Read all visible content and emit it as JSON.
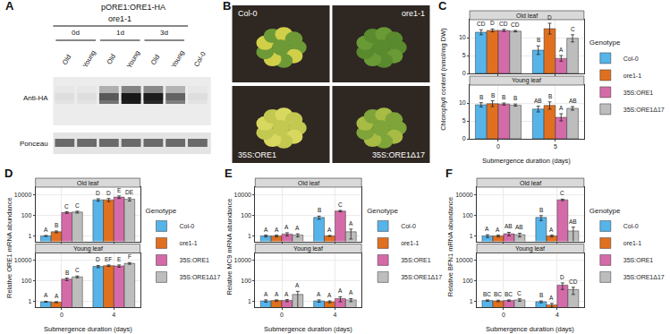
{
  "panels": {
    "A": {
      "label": "A",
      "construct": "pORE1:ORE1-HA",
      "genotype": "ore1-1",
      "timepoints": [
        "0d",
        "1d",
        "3d"
      ],
      "lanes": [
        "Old",
        "Young",
        "Old",
        "Young",
        "Old",
        "Young",
        "Col-0"
      ],
      "rows": [
        "Anti-HA",
        "Ponceau"
      ]
    },
    "B": {
      "label": "B",
      "genotypes": [
        "Col-0",
        "ore1-1",
        "35S:ORE1",
        "35S:ORE1Δ17"
      ]
    }
  },
  "chart_data": [
    {
      "label": "C",
      "type": "bar",
      "y_label": "Chlorophyll content (nmol/mg DW)",
      "x_label": "Submergence duration (days)",
      "categories": [
        "0",
        "5"
      ],
      "legend": "right",
      "legend_title": "Genotype",
      "grid": true,
      "facets": [
        {
          "title": "Old leaf",
          "ylim": [
            0,
            15
          ],
          "yticks": [
            0,
            5,
            10
          ],
          "series": [
            {
              "name": "Col-0",
              "color": "#56B4E9",
              "values": [
                11.5,
                6.5
              ],
              "errors": [
                0.7,
                1.2
              ],
              "letters": [
                "CD",
                "B"
              ]
            },
            {
              "name": "ore1-1",
              "color": "#E07020",
              "values": [
                12,
                12.5
              ],
              "errors": [
                0.4,
                1.5
              ],
              "letters": [
                "D",
                "D"
              ]
            },
            {
              "name": "35S:ORE1",
              "color": "#D46BA8",
              "values": [
                12,
                4.2
              ],
              "errors": [
                0.3,
                0.8
              ],
              "letters": [
                "CD",
                "A"
              ]
            },
            {
              "name": "35S:ORE1Δ17",
              "color": "#BDBDBD",
              "values": [
                11.8,
                9.8
              ],
              "errors": [
                0.2,
                1.0
              ],
              "letters": [
                "CD",
                "C"
              ]
            }
          ]
        },
        {
          "title": "Young leaf",
          "ylim": [
            0,
            15
          ],
          "yticks": [
            0,
            5,
            10
          ],
          "series": [
            {
              "name": "Col-0",
              "color": "#56B4E9",
              "values": [
                9.5,
                8.3
              ],
              "errors": [
                0.6,
                0.8
              ],
              "letters": [
                "B",
                "AB"
              ]
            },
            {
              "name": "ore1-1",
              "color": "#E07020",
              "values": [
                9.8,
                9.3
              ],
              "errors": [
                0.8,
                1.0
              ],
              "letters": [
                "B",
                "B"
              ]
            },
            {
              "name": "35S:ORE1",
              "color": "#D46BA8",
              "values": [
                9.7,
                6.0
              ],
              "errors": [
                0.3,
                1.0
              ],
              "letters": [
                "B",
                "A"
              ]
            },
            {
              "name": "35S:ORE1Δ17",
              "color": "#BDBDBD",
              "values": [
                9.4,
                8.5
              ],
              "errors": [
                0.3,
                0.5
              ],
              "letters": [
                "B",
                "AB"
              ]
            }
          ]
        }
      ]
    },
    {
      "label": "D",
      "type": "bar",
      "y_label": "Relative ORE1 mRNA abundance",
      "x_label": "Submergence duration (days)",
      "categories": [
        "0",
        "4"
      ],
      "log": "y",
      "legend": "right",
      "legend_title": "Genotype",
      "grid": true,
      "facets": [
        {
          "title": "Old leaf",
          "ylim": [
            0.3,
            50000
          ],
          "yticks": [
            1,
            100,
            10000
          ],
          "series": [
            {
              "name": "Col-0",
              "color": "#56B4E9",
              "values": [
                1,
                3000
              ],
              "errors": [
                0.1,
                800
              ],
              "letters": [
                "A",
                "D"
              ]
            },
            {
              "name": "ore1-1",
              "color": "#E07020",
              "values": [
                2.5,
                3000
              ],
              "errors": [
                0.5,
                1000
              ],
              "letters": [
                "B",
                "D"
              ]
            },
            {
              "name": "35S:ORE1",
              "color": "#D46BA8",
              "values": [
                180,
                5500
              ],
              "errors": [
                30,
                1500
              ],
              "letters": [
                "C",
                "E"
              ]
            },
            {
              "name": "35S:ORE1Δ17",
              "color": "#BDBDBD",
              "values": [
                200,
                3500
              ],
              "errors": [
                40,
                1200
              ],
              "letters": [
                "C",
                "DE"
              ]
            }
          ]
        },
        {
          "title": "Young leaf",
          "ylim": [
            0.3,
            50000
          ],
          "yticks": [
            1,
            100,
            10000
          ],
          "series": [
            {
              "name": "Col-0",
              "color": "#56B4E9",
              "values": [
                1,
                2500
              ],
              "errors": [
                0.1,
                600
              ],
              "letters": [
                "A",
                "D"
              ]
            },
            {
              "name": "ore1-1",
              "color": "#E07020",
              "values": [
                0.9,
                3000
              ],
              "errors": [
                0.1,
                500
              ],
              "letters": [
                "A",
                "EF"
              ]
            },
            {
              "name": "35S:ORE1",
              "color": "#D46BA8",
              "values": [
                150,
                2800
              ],
              "errors": [
                40,
                700
              ],
              "letters": [
                "B",
                "E"
              ]
            },
            {
              "name": "35S:ORE1Δ17",
              "color": "#BDBDBD",
              "values": [
                250,
                5000
              ],
              "errors": [
                50,
                900
              ],
              "letters": [
                "C",
                "F"
              ]
            }
          ]
        }
      ]
    },
    {
      "label": "E",
      "type": "bar",
      "y_label": "Relative MC9 mRNA abundance",
      "x_label": "Submergence duration (days)",
      "categories": [
        "0",
        "4"
      ],
      "log": "y",
      "legend": "right",
      "legend_title": "Genotype",
      "grid": true,
      "facets": [
        {
          "title": "Old leaf",
          "ylim": [
            0.3,
            50000
          ],
          "yticks": [
            1,
            100,
            10000
          ],
          "series": [
            {
              "name": "Col-0",
              "color": "#56B4E9",
              "values": [
                1,
                60
              ],
              "errors": [
                0.2,
                20
              ],
              "letters": [
                "A",
                "B"
              ]
            },
            {
              "name": "ore1-1",
              "color": "#E07020",
              "values": [
                1,
                1
              ],
              "errors": [
                0.2,
                0.1
              ],
              "letters": [
                "A",
                "A"
              ]
            },
            {
              "name": "35S:ORE1",
              "color": "#D46BA8",
              "values": [
                1.5,
                250
              ],
              "errors": [
                0.5,
                40
              ],
              "letters": [
                "A",
                "C"
              ]
            },
            {
              "name": "35S:ORE1Δ17",
              "color": "#BDBDBD",
              "values": [
                1.2,
                2.5
              ],
              "errors": [
                0.4,
                2
              ],
              "letters": [
                "A",
                "A"
              ]
            }
          ]
        },
        {
          "title": "Young leaf",
          "ylim": [
            0.3,
            50000
          ],
          "yticks": [
            1,
            100,
            10000
          ],
          "series": [
            {
              "name": "Col-0",
              "color": "#56B4E9",
              "values": [
                1.2,
                1.2
              ],
              "errors": [
                0.3,
                0.3
              ],
              "letters": [
                "A",
                "A"
              ]
            },
            {
              "name": "ore1-1",
              "color": "#E07020",
              "values": [
                1.3,
                1
              ],
              "errors": [
                0.2,
                0.2
              ],
              "letters": [
                "A",
                "A"
              ]
            },
            {
              "name": "35S:ORE1",
              "color": "#D46BA8",
              "values": [
                1.3,
                2
              ],
              "errors": [
                0.3,
                1
              ],
              "letters": [
                "A",
                "A"
              ]
            },
            {
              "name": "35S:ORE1Δ17",
              "color": "#BDBDBD",
              "values": [
                5,
                1.5
              ],
              "errors": [
                5,
                0.5
              ],
              "letters": [
                "A",
                "A"
              ]
            }
          ]
        }
      ]
    },
    {
      "label": "F",
      "type": "bar",
      "y_label": "Relative BFN1 mRNA abundance",
      "x_label": "Submergence duration (days)",
      "categories": [
        "0",
        "4"
      ],
      "log": "y",
      "legend": "right",
      "legend_title": "Genotype",
      "grid": true,
      "facets": [
        {
          "title": "Old leaf",
          "ylim": [
            0.3,
            50000
          ],
          "yticks": [
            1,
            100,
            10000
          ],
          "series": [
            {
              "name": "Col-0",
              "color": "#56B4E9",
              "values": [
                1,
                60
              ],
              "errors": [
                0.3,
                30
              ],
              "letters": [
                "A",
                "B"
              ]
            },
            {
              "name": "ore1-1",
              "color": "#E07020",
              "values": [
                1,
                1
              ],
              "errors": [
                0.2,
                0.2
              ],
              "letters": [
                "A",
                "A"
              ]
            },
            {
              "name": "35S:ORE1",
              "color": "#D46BA8",
              "values": [
                1.6,
                3000
              ],
              "errors": [
                0.6,
                500
              ],
              "letters": [
                "AB",
                "C"
              ]
            },
            {
              "name": "35S:ORE1Δ17",
              "color": "#BDBDBD",
              "values": [
                1.3,
                3
              ],
              "errors": [
                0.5,
                4
              ],
              "letters": [
                "AB",
                "AB"
              ]
            }
          ]
        },
        {
          "title": "Young leaf",
          "ylim": [
            0.3,
            50000
          ],
          "yticks": [
            1,
            100,
            10000
          ],
          "series": [
            {
              "name": "Col-0",
              "color": "#56B4E9",
              "values": [
                1.3,
                1
              ],
              "errors": [
                0.2,
                0.2
              ],
              "letters": [
                "BC",
                "B"
              ]
            },
            {
              "name": "ore1-1",
              "color": "#E07020",
              "values": [
                1.2,
                0.5
              ],
              "errors": [
                0.2,
                0.2
              ],
              "letters": [
                "BC",
                "A"
              ]
            },
            {
              "name": "35S:ORE1",
              "color": "#D46BA8",
              "values": [
                1.3,
                40
              ],
              "errors": [
                0.2,
                25
              ],
              "letters": [
                "BC",
                "D"
              ]
            },
            {
              "name": "35S:ORE1Δ17",
              "color": "#BDBDBD",
              "values": [
                1.5,
                15
              ],
              "errors": [
                0.4,
                10
              ],
              "letters": [
                "C",
                "CD"
              ]
            }
          ]
        }
      ]
    }
  ]
}
